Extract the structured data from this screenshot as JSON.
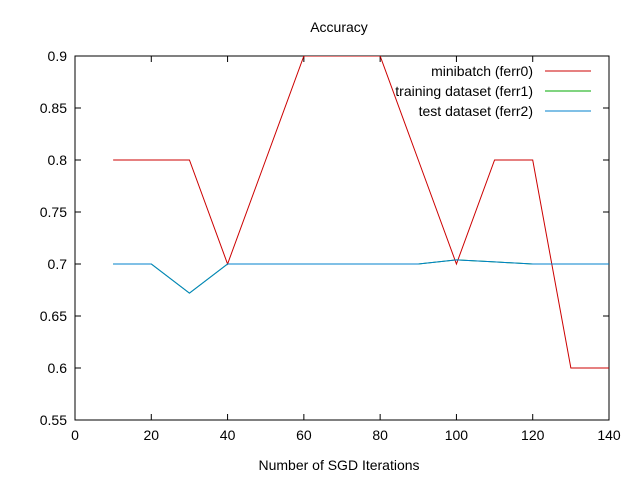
{
  "chart_data": {
    "type": "line",
    "title": "Accuracy",
    "xlabel": "Number of SGD Iterations",
    "ylabel": "",
    "xlim": [
      0,
      140
    ],
    "ylim": [
      0.55,
      0.9
    ],
    "xticks": [
      0,
      20,
      40,
      60,
      80,
      100,
      120,
      140
    ],
    "xtick_labels": [
      "0",
      "20",
      "40",
      "60",
      "80",
      "100",
      "120",
      "140"
    ],
    "yticks": [
      0.55,
      0.6,
      0.65,
      0.7,
      0.75,
      0.8,
      0.85,
      0.9
    ],
    "ytick_labels": [
      "0.55",
      "0.6",
      "0.65",
      "0.7",
      "0.75",
      "0.8",
      "0.85",
      "0.9"
    ],
    "grid": false,
    "legend_position": "top-right",
    "series": [
      {
        "name": "minibatch (ferr0)",
        "color": "#cc0000",
        "x": [
          10,
          20,
          30,
          40,
          50,
          60,
          70,
          80,
          90,
          100,
          110,
          120,
          130,
          140
        ],
        "y": [
          0.8,
          0.8,
          0.8,
          0.7,
          0.8,
          0.9,
          0.9,
          0.9,
          0.8,
          0.7,
          0.8,
          0.8,
          0.6,
          0.6
        ]
      },
      {
        "name": "training dataset (ferr1)",
        "color": "#00aa00",
        "x": [
          10,
          20,
          30,
          40,
          50,
          60,
          70,
          80,
          90,
          100,
          110,
          120,
          130,
          140
        ],
        "y": [
          0.7,
          0.7,
          0.672,
          0.7,
          0.7,
          0.7,
          0.7,
          0.7,
          0.7,
          0.704,
          0.702,
          0.7,
          0.7,
          0.7
        ]
      },
      {
        "name": "test dataset (ferr2)",
        "color": "#0080cc",
        "x": [
          10,
          20,
          30,
          40,
          50,
          60,
          70,
          80,
          90,
          100,
          110,
          120,
          130,
          140
        ],
        "y": [
          0.7,
          0.7,
          0.672,
          0.7,
          0.7,
          0.7,
          0.7,
          0.7,
          0.7,
          0.704,
          0.702,
          0.7,
          0.7,
          0.7
        ]
      }
    ]
  }
}
